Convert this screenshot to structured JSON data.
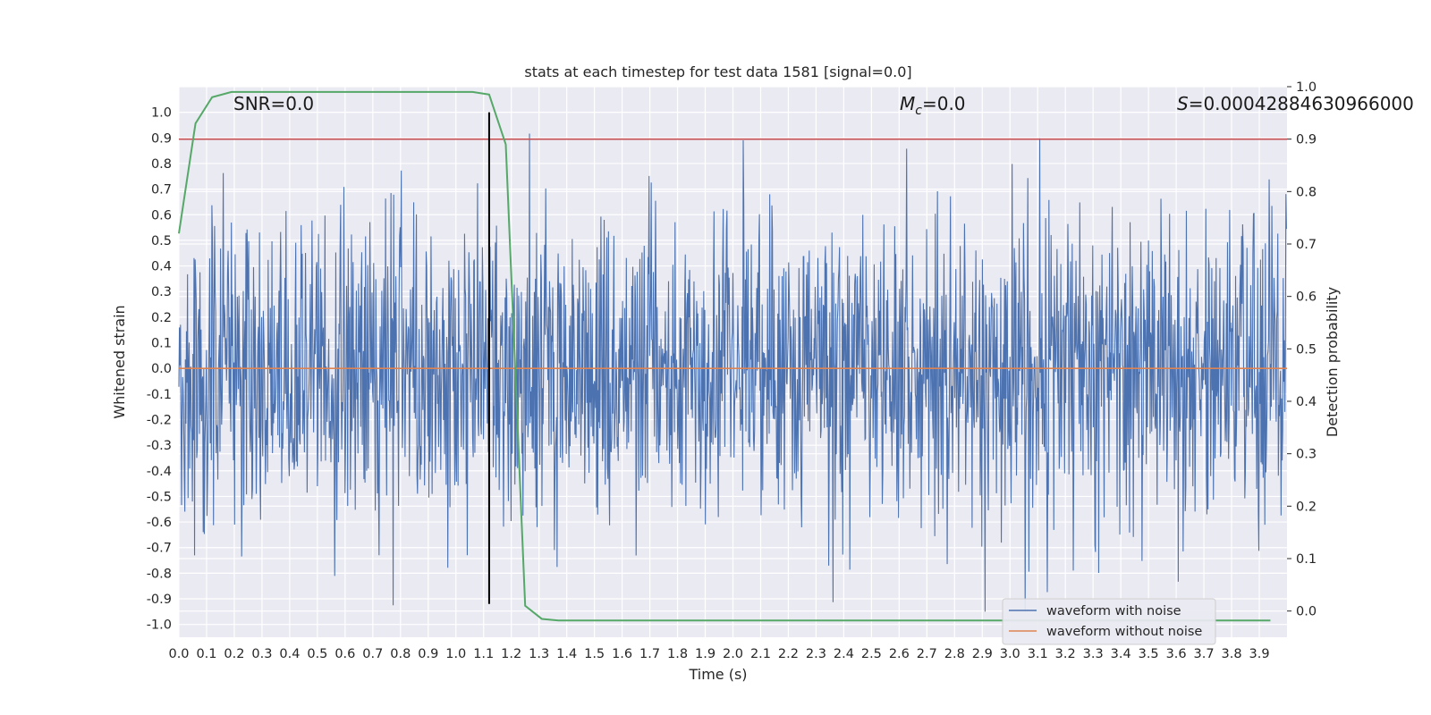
{
  "chart_data": {
    "type": "line",
    "title": "stats at each timestep for test data 1581 [signal=0.0]",
    "xlabel": "Time (s)",
    "ylabel": "Whitened strain",
    "y2label": "Detection probability",
    "xlim": [
      0.0,
      4.0
    ],
    "ylim": [
      -1.05,
      1.1
    ],
    "y2lim": [
      -0.05,
      1.0
    ],
    "x_ticks": [
      "0.0",
      "0.1",
      "0.2",
      "0.3",
      "0.4",
      "0.5",
      "0.6",
      "0.7",
      "0.8",
      "0.9",
      "1.0",
      "1.1",
      "1.2",
      "1.3",
      "1.4",
      "1.5",
      "1.6",
      "1.7",
      "1.8",
      "1.9",
      "2.0",
      "2.1",
      "2.2",
      "2.3",
      "2.4",
      "2.5",
      "2.6",
      "2.7",
      "2.8",
      "2.9",
      "3.0",
      "3.1",
      "3.2",
      "3.3",
      "3.4",
      "3.5",
      "3.6",
      "3.7",
      "3.8",
      "3.9"
    ],
    "y_ticks": [
      "1.0",
      "0.9",
      "0.8",
      "0.7",
      "0.6",
      "0.5",
      "0.4",
      "0.3",
      "0.2",
      "0.1",
      "0.0",
      "-0.1",
      "-0.2",
      "-0.3",
      "-0.4",
      "-0.5",
      "-0.6",
      "-0.7",
      "-0.8",
      "-0.9",
      "-1.0"
    ],
    "y2_ticks": [
      "1.0",
      "0.9",
      "0.8",
      "0.7",
      "0.6",
      "0.5",
      "0.4",
      "0.3",
      "0.2",
      "0.1",
      "0.0"
    ],
    "annotations": {
      "snr": "SNR=0.0",
      "mc": "=0.0",
      "mc_symbol": "M",
      "mc_sub": "c",
      "s": "=0.00042884630966000",
      "s_symbol": "S"
    },
    "series": [
      {
        "name": "waveform with noise",
        "color": "#4c72b0",
        "axis": "left",
        "note": "dense random noise, amplitude roughly within ±0.95"
      },
      {
        "name": "waveform without noise",
        "color": "#dd8452",
        "axis": "left",
        "x": [
          0.0,
          4.0
        ],
        "y": [
          0.0,
          0.0
        ]
      },
      {
        "name": "",
        "color": "#55a868",
        "axis": "right",
        "x": [
          0.0,
          0.06,
          0.12,
          0.19,
          0.25,
          1.06,
          1.12,
          1.18,
          1.25,
          1.31,
          1.37,
          1.44,
          1.5,
          2.0,
          3.0,
          3.94
        ],
        "y": [
          0.72,
          0.93,
          0.98,
          0.99,
          0.99,
          0.99,
          0.985,
          0.89,
          0.01,
          -0.015,
          -0.018,
          -0.018,
          -0.018,
          -0.018,
          -0.018,
          -0.018
        ]
      }
    ],
    "hlines": [
      {
        "axis": "right",
        "y": 0.9,
        "color": "#c44e52"
      }
    ],
    "vlines": [
      {
        "x": 1.12,
        "y": [
          -0.92,
          1.0
        ],
        "color": "#000000"
      }
    ],
    "legend": {
      "placement": "lower-right",
      "entries": [
        "waveform with noise",
        "waveform without noise"
      ]
    },
    "grid": true,
    "colors": {
      "background": "#eaeaf2",
      "grid": "#ffffff",
      "noise": "#4c72b0",
      "clean": "#dd8452",
      "prob": "#55a868",
      "threshold": "#c44e52"
    }
  }
}
